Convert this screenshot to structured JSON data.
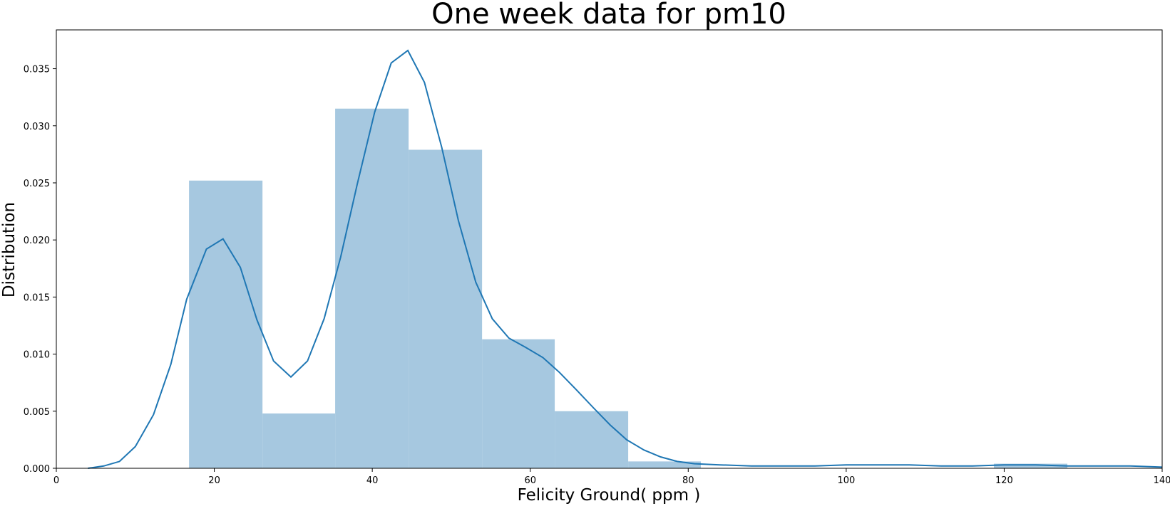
{
  "chart_data": {
    "type": "bar",
    "title": "One week data for pm10",
    "xlabel": "Felicity Ground( ppm )",
    "ylabel": "Distribution",
    "xlim": [
      0,
      140
    ],
    "ylim": [
      0,
      0.0384
    ],
    "x_ticks": [
      0,
      20,
      40,
      60,
      80,
      100,
      120,
      140
    ],
    "x_tick_labels": [
      "0",
      "20",
      "40",
      "60",
      "80",
      "100",
      "120",
      "140"
    ],
    "y_ticks": [
      0.0,
      0.005,
      0.01,
      0.015,
      0.02,
      0.025,
      0.03,
      0.035
    ],
    "y_tick_labels": [
      "0.000",
      "0.005",
      "0.010",
      "0.015",
      "0.020",
      "0.025",
      "0.030",
      "0.035"
    ],
    "grid": false,
    "colors": {
      "bar_fill": "#a6c8e0",
      "kde_line": "#1f77b4",
      "axes": "#000000"
    },
    "histogram": {
      "bin_edges": [
        16.8,
        26.1,
        35.3,
        44.6,
        53.9,
        63.1,
        72.4,
        81.6,
        90.9,
        100.2,
        109.4,
        118.7,
        128.0
      ],
      "values": [
        0.0252,
        0.0048,
        0.0315,
        0.0279,
        0.0113,
        0.005,
        0.0006,
        0.0,
        0.0,
        0.0,
        0.0,
        0.0004
      ]
    },
    "kde": {
      "x": [
        4,
        6,
        8,
        10,
        12.3,
        14.5,
        16.5,
        19,
        21.1,
        23.3,
        25.4,
        27.5,
        29.7,
        31.8,
        33.9,
        36,
        38.1,
        40.3,
        42.4,
        44.5,
        46.6,
        48.8,
        50.9,
        53.1,
        55.2,
        57.3,
        59.4,
        61.6,
        63.7,
        65.8,
        68,
        70.1,
        72.2,
        74.4,
        76.5,
        78.6,
        80.8,
        84,
        88,
        92,
        96,
        100,
        104,
        108,
        112,
        116,
        120,
        124,
        128,
        132,
        136,
        140
      ],
      "y": [
        0.0,
        0.0002,
        0.0006,
        0.0019,
        0.0047,
        0.0091,
        0.0148,
        0.0192,
        0.0201,
        0.0176,
        0.013,
        0.0094,
        0.008,
        0.0094,
        0.0131,
        0.0185,
        0.0249,
        0.0312,
        0.0355,
        0.0366,
        0.0338,
        0.0281,
        0.0217,
        0.0163,
        0.0131,
        0.0114,
        0.0106,
        0.0097,
        0.0084,
        0.0069,
        0.0053,
        0.0038,
        0.0025,
        0.0016,
        0.001,
        0.0006,
        0.0004,
        0.0003,
        0.0002,
        0.0002,
        0.0002,
        0.0003,
        0.0003,
        0.0003,
        0.0002,
        0.0002,
        0.0003,
        0.0003,
        0.0002,
        0.0002,
        0.0002,
        0.0001
      ]
    }
  }
}
